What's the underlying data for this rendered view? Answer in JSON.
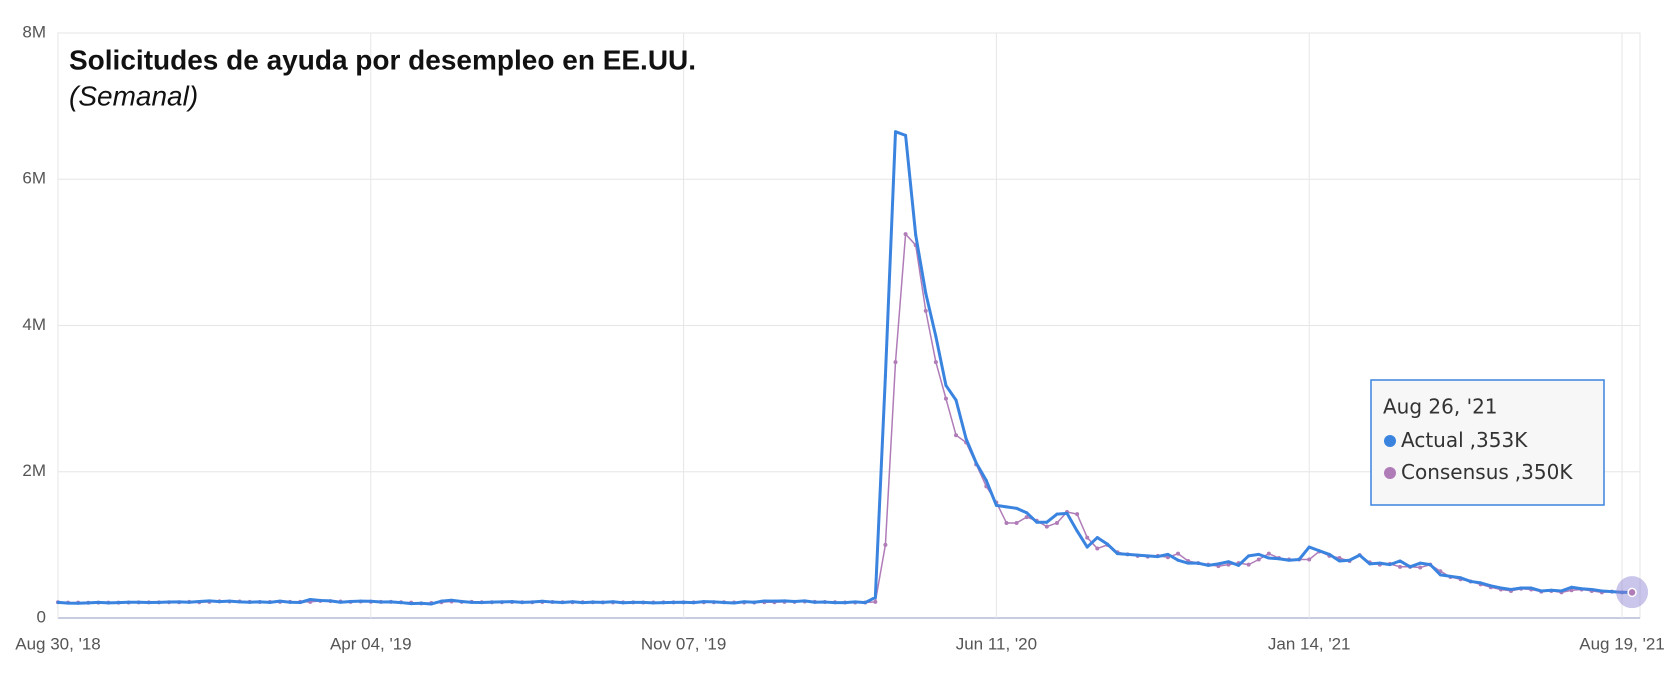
{
  "chart_data": {
    "type": "line",
    "title": "Solicitudes de ayuda por desempleo en EE.UU.",
    "subtitle": "(Semanal)",
    "categories": [
      "Aug 30, '18",
      null,
      null,
      null,
      null,
      null,
      null,
      null,
      null,
      null,
      null,
      null,
      null,
      null,
      null,
      null,
      null,
      null,
      null,
      null,
      null,
      null,
      null,
      null,
      null,
      null,
      null,
      null,
      null,
      null,
      null,
      "Apr 04, '19",
      null,
      null,
      null,
      null,
      null,
      null,
      null,
      null,
      null,
      null,
      null,
      null,
      null,
      null,
      null,
      null,
      null,
      null,
      null,
      null,
      null,
      null,
      null,
      null,
      null,
      null,
      null,
      null,
      null,
      null,
      "Nov 07, '19",
      null,
      null,
      null,
      null,
      null,
      null,
      null,
      null,
      null,
      null,
      null,
      null,
      null,
      null,
      null,
      null,
      null,
      null,
      null,
      null,
      null,
      null,
      null,
      null,
      null,
      null,
      null,
      null,
      null,
      null,
      "Jun 11, '20",
      null,
      null,
      null,
      null,
      null,
      null,
      null,
      null,
      null,
      null,
      null,
      null,
      null,
      null,
      null,
      null,
      null,
      null,
      null,
      null,
      null,
      null,
      null,
      null,
      null,
      null,
      null,
      null,
      null,
      null,
      "Jan 14, '21",
      null,
      null,
      null,
      null,
      null,
      null,
      null,
      null,
      null,
      null,
      null,
      null,
      null,
      null,
      null,
      null,
      null,
      null,
      null,
      null,
      null,
      null,
      null,
      null,
      null,
      null,
      null,
      null,
      null,
      null,
      "Aug 19, '21",
      null
    ],
    "series": [
      {
        "name": "Actual",
        "color": "#3a84e0",
        "values": [
          0.213,
          0.204,
          0.201,
          0.207,
          0.214,
          0.207,
          0.21,
          0.215,
          0.216,
          0.212,
          0.214,
          0.218,
          0.221,
          0.216,
          0.225,
          0.234,
          0.224,
          0.231,
          0.22,
          0.216,
          0.221,
          0.213,
          0.231,
          0.216,
          0.212,
          0.253,
          0.239,
          0.234,
          0.216,
          0.225,
          0.23,
          0.229,
          0.219,
          0.221,
          0.211,
          0.196,
          0.202,
          0.192,
          0.23,
          0.242,
          0.225,
          0.213,
          0.212,
          0.217,
          0.22,
          0.224,
          0.213,
          0.219,
          0.229,
          0.218,
          0.212,
          0.222,
          0.211,
          0.217,
          0.213,
          0.222,
          0.209,
          0.213,
          0.214,
          0.207,
          0.21,
          0.214,
          0.216,
          0.21,
          0.224,
          0.22,
          0.212,
          0.205,
          0.222,
          0.215,
          0.232,
          0.23,
          0.234,
          0.226,
          0.234,
          0.215,
          0.218,
          0.21,
          0.211,
          0.22,
          0.211,
          0.28,
          3.31,
          6.65,
          6.6,
          5.24,
          4.44,
          3.85,
          3.18,
          2.98,
          2.45,
          2.12,
          1.88,
          1.54,
          1.52,
          1.5,
          1.44,
          1.31,
          1.31,
          1.42,
          1.43,
          1.19,
          0.97,
          1.1,
          1.01,
          0.88,
          0.87,
          0.86,
          0.85,
          0.84,
          0.87,
          0.79,
          0.75,
          0.75,
          0.72,
          0.74,
          0.77,
          0.72,
          0.85,
          0.87,
          0.82,
          0.81,
          0.79,
          0.8,
          0.97,
          0.92,
          0.87,
          0.78,
          0.79,
          0.86,
          0.74,
          0.75,
          0.73,
          0.78,
          0.7,
          0.75,
          0.73,
          0.59,
          0.57,
          0.55,
          0.5,
          0.48,
          0.44,
          0.41,
          0.39,
          0.41,
          0.41,
          0.37,
          0.38,
          0.37,
          0.42,
          0.4,
          0.39,
          0.37,
          0.36,
          0.35,
          0.353
        ]
      },
      {
        "name": "Consensus",
        "color": "#b07cb8",
        "values": [
          0.215,
          0.21,
          0.21,
          0.208,
          0.21,
          0.21,
          0.21,
          0.212,
          0.214,
          0.214,
          0.213,
          0.215,
          0.215,
          0.22,
          0.215,
          0.22,
          0.227,
          0.225,
          0.225,
          0.22,
          0.218,
          0.218,
          0.22,
          0.22,
          0.22,
          0.22,
          0.235,
          0.23,
          0.225,
          0.22,
          0.225,
          0.222,
          0.22,
          0.22,
          0.215,
          0.21,
          0.2,
          0.205,
          0.215,
          0.225,
          0.22,
          0.22,
          0.215,
          0.215,
          0.215,
          0.218,
          0.216,
          0.215,
          0.218,
          0.218,
          0.215,
          0.216,
          0.215,
          0.215,
          0.213,
          0.213,
          0.213,
          0.213,
          0.212,
          0.212,
          0.213,
          0.213,
          0.214,
          0.214,
          0.215,
          0.216,
          0.215,
          0.212,
          0.212,
          0.212,
          0.215,
          0.216,
          0.22,
          0.22,
          0.225,
          0.22,
          0.218,
          0.215,
          0.212,
          0.212,
          0.212,
          0.22,
          1.0,
          3.5,
          5.25,
          5.1,
          4.2,
          3.5,
          3.0,
          2.5,
          2.4,
          2.1,
          1.8,
          1.58,
          1.3,
          1.3,
          1.38,
          1.33,
          1.25,
          1.3,
          1.45,
          1.42,
          1.1,
          0.95,
          1.0,
          0.9,
          0.87,
          0.85,
          0.84,
          0.85,
          0.83,
          0.88,
          0.78,
          0.75,
          0.73,
          0.71,
          0.73,
          0.75,
          0.73,
          0.8,
          0.88,
          0.82,
          0.8,
          0.8,
          0.8,
          0.91,
          0.85,
          0.82,
          0.78,
          0.86,
          0.76,
          0.73,
          0.74,
          0.7,
          0.7,
          0.69,
          0.73,
          0.64,
          0.56,
          0.53,
          0.5,
          0.46,
          0.42,
          0.39,
          0.37,
          0.4,
          0.39,
          0.36,
          0.37,
          0.35,
          0.38,
          0.39,
          0.37,
          0.35,
          0.36,
          0.35,
          0.35
        ]
      }
    ],
    "ylim": [
      0,
      8
    ],
    "yticks": [
      {
        "value": 0,
        "label": "0"
      },
      {
        "value": 2,
        "label": "2M"
      },
      {
        "value": 4,
        "label": "4M"
      },
      {
        "value": 6,
        "label": "6M"
      },
      {
        "value": 8,
        "label": "8M"
      }
    ],
    "grid": true,
    "tooltip": {
      "title": "Aug 26, '21",
      "value_labels": [
        ",353K",
        ",350K"
      ]
    }
  }
}
